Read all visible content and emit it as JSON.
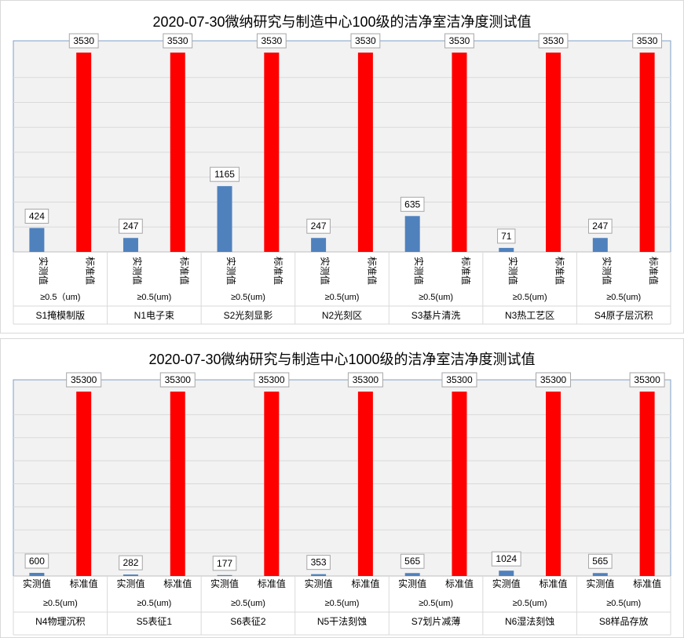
{
  "colors": {
    "actual": "#4f81bd",
    "standard": "#ff0000",
    "grid": "#d9d9d9",
    "plot_bg": "#f2f2f2",
    "frame": "#7f9fc8"
  },
  "chart_data": [
    {
      "type": "bar",
      "title": "2020-07-30微纳研究与制造中心100级的洁净室洁净度测试值",
      "ylim": [
        0,
        3530
      ],
      "grid": true,
      "value_axis_labels": false,
      "groups": [
        {
          "name": "S1掩模制版",
          "particle": "≥0.5（um)",
          "actual_label": "实测值",
          "standard_label": "标准值",
          "actual": 424,
          "standard": 3530
        },
        {
          "name": "N1电子束",
          "particle": "≥0.5(um)",
          "actual_label": "实测值",
          "standard_label": "标准值",
          "actual": 247,
          "standard": 3530
        },
        {
          "name": "S2光刻显影",
          "particle": "≥0.5(um)",
          "actual_label": "实测值",
          "standard_label": "标准值",
          "actual": 1165,
          "standard": 3530
        },
        {
          "name": "N2光刻区",
          "particle": "≥0.5(um)",
          "actual_label": "实测值",
          "standard_label": "标准值",
          "actual": 247,
          "standard": 3530
        },
        {
          "name": "S3基片清洗",
          "particle": "≥0.5(um)",
          "actual_label": "实测值",
          "standard_label": "标准值",
          "actual": 635,
          "standard": 3530
        },
        {
          "name": "N3热工艺区",
          "particle": "≥0.5(um)",
          "actual_label": "实测值",
          "standard_label": "标准值",
          "actual": 71,
          "standard": 3530
        },
        {
          "name": "S4原子层沉积",
          "particle": "≥0.5(um)",
          "actual_label": "实测值",
          "standard_label": "标准值",
          "actual": 247,
          "standard": 3530
        }
      ]
    },
    {
      "type": "bar",
      "title": "2020-07-30微纳研究与制造中心1000级的洁净室洁净度测试值",
      "ylim": [
        0,
        35300
      ],
      "grid": true,
      "value_axis_labels": false,
      "groups": [
        {
          "name": "N4物理沉积",
          "particle": "≥0.5(um)",
          "actual_label": "实测值",
          "standard_label": "标准值",
          "actual": 600,
          "standard": 35300
        },
        {
          "name": "S5表征1",
          "particle": "≥0.5(um)",
          "actual_label": "实测值",
          "standard_label": "标准值",
          "actual": 282,
          "standard": 35300
        },
        {
          "name": "S6表征2",
          "particle": "≥0.5(um)",
          "actual_label": "实测值",
          "standard_label": "标准值",
          "actual": 177,
          "standard": 35300
        },
        {
          "name": "N5干法刻蚀",
          "particle": "≥0.5(um)",
          "actual_label": "实测值",
          "standard_label": "标准值",
          "actual": 353,
          "standard": 35300
        },
        {
          "name": "S7划片减薄",
          "particle": "≥0.5(um)",
          "actual_label": "实测值",
          "standard_label": "标准值",
          "actual": 565,
          "standard": 35300
        },
        {
          "name": "N6湿法刻蚀",
          "particle": "≥0.5(um)",
          "actual_label": "实测值",
          "standard_label": "标准值",
          "actual": 1024,
          "standard": 35300
        },
        {
          "name": "S8样品存放",
          "particle": "≥0.5(um)",
          "actual_label": "实测值",
          "standard_label": "标准值",
          "actual": 565,
          "standard": 35300
        }
      ]
    }
  ]
}
